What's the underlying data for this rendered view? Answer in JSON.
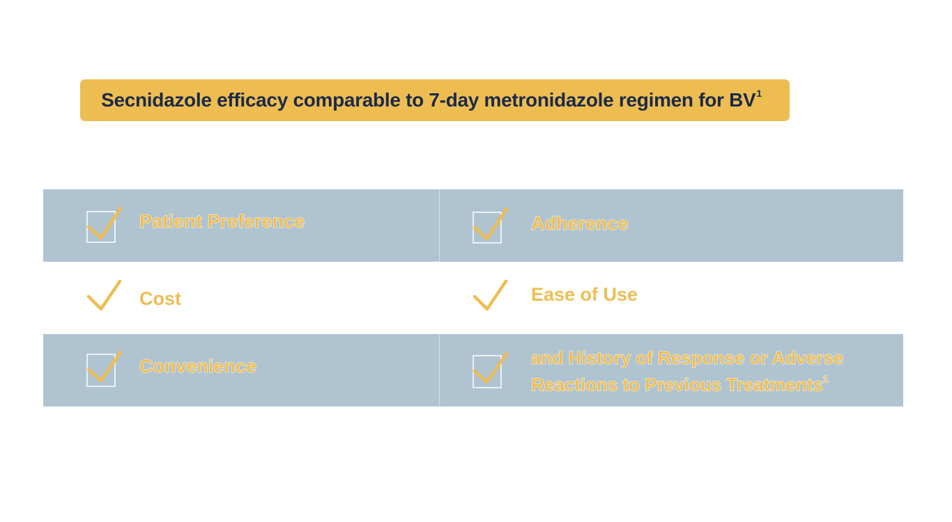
{
  "banner": {
    "title": "Secnidazole efficacy comparable to 7-day metronidazole regimen for BV",
    "superscript": "1",
    "background_color": "#eebd52",
    "text_color": "#1b2a48"
  },
  "rows": [
    {
      "left": "Patient Preference",
      "right": "Adherence"
    },
    {
      "left": "Cost",
      "right": "Ease of Use"
    },
    {
      "left": "Convenience",
      "right_line1": "and History of Response or Adverse",
      "right_line2": "Reactions to Previous Treatments",
      "right_superscript": "1"
    }
  ],
  "colors": {
    "shaded_row": "#afc3d1",
    "accent": "#eebd52"
  },
  "icons": {
    "boxed_check": "checkbox-checked-icon",
    "plain_check": "checkmark-icon"
  }
}
